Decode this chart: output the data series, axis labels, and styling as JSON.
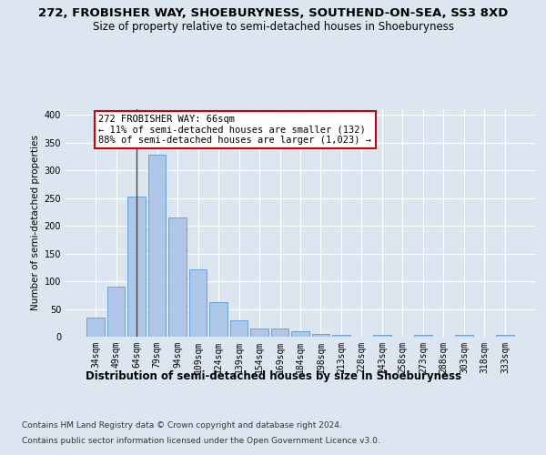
{
  "title1": "272, FROBISHER WAY, SHOEBURYNESS, SOUTHEND-ON-SEA, SS3 8XD",
  "title2": "Size of property relative to semi-detached houses in Shoeburyness",
  "xlabel": "Distribution of semi-detached houses by size in Shoeburyness",
  "ylabel": "Number of semi-detached properties",
  "footer1": "Contains HM Land Registry data © Crown copyright and database right 2024.",
  "footer2": "Contains public sector information licensed under the Open Government Licence v3.0.",
  "categories": [
    "34sqm",
    "49sqm",
    "64sqm",
    "79sqm",
    "94sqm",
    "109sqm",
    "124sqm",
    "139sqm",
    "154sqm",
    "169sqm",
    "184sqm",
    "198sqm",
    "213sqm",
    "228sqm",
    "243sqm",
    "258sqm",
    "273sqm",
    "288sqm",
    "303sqm",
    "318sqm",
    "333sqm"
  ],
  "values": [
    35,
    90,
    253,
    328,
    215,
    121,
    62,
    29,
    15,
    14,
    10,
    5,
    4,
    0,
    3,
    0,
    4,
    0,
    4,
    0,
    4
  ],
  "bar_color": "#aec6e8",
  "bar_edge_color": "#5b9bd5",
  "highlight_bar_index": 2,
  "highlight_line_color": "#444444",
  "annotation_text": "272 FROBISHER WAY: 66sqm\n← 11% of semi-detached houses are smaller (132)\n88% of semi-detached houses are larger (1,023) →",
  "annotation_box_color": "#ffffff",
  "annotation_box_edge": "#cc0000",
  "ylim": [
    0,
    410
  ],
  "yticks": [
    0,
    50,
    100,
    150,
    200,
    250,
    300,
    350,
    400
  ],
  "fig_bg_color": "#dce6f0",
  "plot_bg_color": "#dce6f0",
  "grid_color": "#ffffff",
  "title1_fontsize": 9.5,
  "title2_fontsize": 8.5,
  "xlabel_fontsize": 8.5,
  "ylabel_fontsize": 7.5,
  "tick_fontsize": 7,
  "annotation_fontsize": 7.5,
  "footer_fontsize": 6.5
}
